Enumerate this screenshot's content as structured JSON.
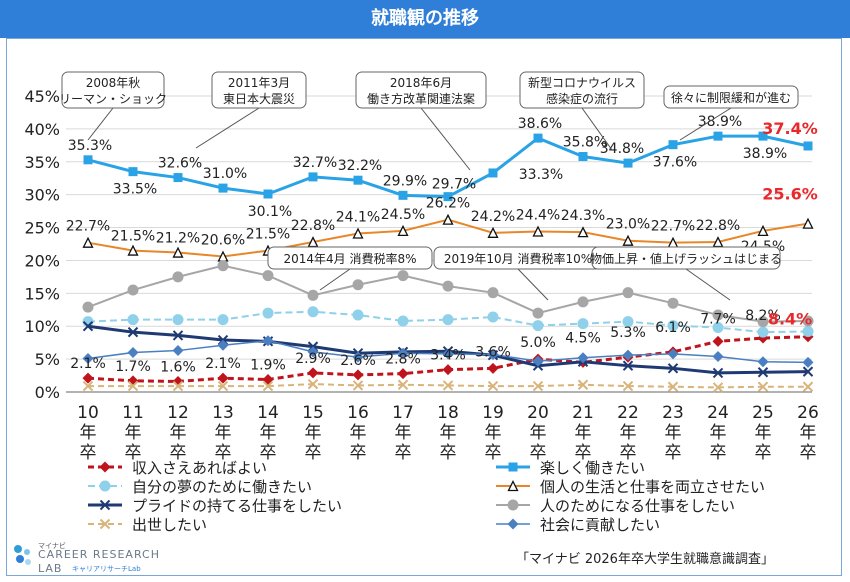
{
  "title": "就職観の推移",
  "source": "「マイナビ 2026年卒大学生就職意識調査」",
  "logo": {
    "small": "マイナビ",
    "main": "CAREER RESEARCH",
    "lab": "LAB",
    "sub": "キャリアリサーチLab"
  },
  "chart_data": {
    "type": "line",
    "categories": [
      "10\n年\n卒",
      "11\n年\n卒",
      "12\n年\n卒",
      "13\n年\n卒",
      "14\n年\n卒",
      "15\n年\n卒",
      "16\n年\n卒",
      "17\n年\n卒",
      "18\n年\n卒",
      "19\n年\n卒",
      "20\n年\n卒",
      "21\n年\n卒",
      "22\n年\n卒",
      "23\n年\n卒",
      "24\n年\n卒",
      "25\n年\n卒",
      "26\n年\n卒"
    ],
    "ylim": [
      0,
      45
    ],
    "yticks": [
      "0%",
      "5%",
      "10%",
      "15%",
      "20%",
      "25%",
      "30%",
      "35%",
      "40%",
      "45%"
    ],
    "grid": true,
    "series": [
      {
        "name": "収入さえあればよい",
        "color": "#c0141c",
        "dash": "6,4",
        "marker": "diamond",
        "width": 3,
        "values": [
          2.1,
          1.7,
          1.6,
          2.1,
          1.9,
          2.9,
          2.6,
          2.8,
          3.4,
          3.6,
          5.0,
          4.5,
          5.3,
          6.1,
          7.7,
          8.2,
          8.4
        ],
        "labels": [
          "2.1%",
          "1.7%",
          "1.6%",
          "2.1%",
          "1.9%",
          "2.9%",
          "2.6%",
          "2.8%",
          "3.4%",
          "3.6%",
          "5.0%",
          "4.5%",
          "5.3%",
          "6.1%",
          "7.7%",
          "8.2%",
          "8.4%"
        ]
      },
      {
        "name": "楽しく働きたい",
        "color": "#29a3e6",
        "dash": "",
        "marker": "square",
        "width": 3,
        "values": [
          35.3,
          33.5,
          32.6,
          31.0,
          30.1,
          32.7,
          32.2,
          29.9,
          29.7,
          33.3,
          38.6,
          35.8,
          34.8,
          37.6,
          38.9,
          38.9,
          37.4
        ],
        "labels": [
          "35.3%",
          "33.5%",
          "32.6%",
          "31.0%",
          "30.1%",
          "32.7%",
          "32.2%",
          "29.9%",
          "29.7%",
          "33.3%",
          "38.6%",
          "35.8%",
          "34.8%",
          "37.6%",
          "38.9%",
          "38.9%",
          "37.4%"
        ]
      },
      {
        "name": "自分の夢のために働きたい",
        "color": "#8fd0ea",
        "dash": "7,4",
        "marker": "circle",
        "width": 2,
        "values": [
          10.7,
          11.0,
          11.0,
          11.0,
          12.0,
          12.2,
          11.7,
          10.8,
          11.0,
          11.4,
          10.1,
          10.4,
          10.7,
          10.1,
          9.8,
          9.1,
          9.2
        ]
      },
      {
        "name": "個人の生活と仕事を両立させたい",
        "color": "#e8872a",
        "dash": "",
        "marker": "triangle",
        "width": 2,
        "values": [
          22.7,
          21.5,
          21.2,
          20.6,
          21.5,
          22.8,
          24.1,
          24.5,
          26.2,
          24.2,
          24.4,
          24.3,
          23.0,
          22.7,
          22.8,
          24.5,
          25.6
        ],
        "labels": [
          "22.7%",
          "21.5%",
          "21.2%",
          "20.6%",
          "21.5%",
          "22.8%",
          "24.1%",
          "24.5%",
          "26.2%",
          "24.2%",
          "24.4%",
          "24.3%",
          "23.0%",
          "22.7%",
          "22.8%",
          "24.5%",
          "25.6%"
        ]
      },
      {
        "name": "プライドの持てる仕事をしたい",
        "color": "#1f3a73",
        "dash": "",
        "marker": "x",
        "width": 3,
        "values": [
          10.0,
          9.1,
          8.6,
          7.9,
          7.7,
          6.9,
          5.9,
          6.1,
          6.2,
          5.6,
          4.0,
          4.6,
          4.0,
          3.6,
          2.9,
          3.0,
          3.1
        ]
      },
      {
        "name": "人のためになる仕事をしたい",
        "color": "#a6a6a6",
        "dash": "",
        "marker": "circle",
        "width": 2,
        "values": [
          12.9,
          15.5,
          17.5,
          19.2,
          17.7,
          14.7,
          16.3,
          17.7,
          16.1,
          15.1,
          12.0,
          13.7,
          15.1,
          13.5,
          11.7,
          10.7,
          10.8
        ]
      },
      {
        "name": "出世したい",
        "color": "#d9b47a",
        "dash": "6,4",
        "marker": "x",
        "width": 2,
        "values": [
          0.9,
          0.9,
          0.9,
          0.9,
          0.9,
          1.2,
          1.0,
          1.1,
          1.0,
          0.9,
          0.9,
          1.1,
          0.9,
          0.8,
          0.7,
          0.8,
          0.8
        ]
      },
      {
        "name": "社会に貢献したい",
        "color": "#4a7fc1",
        "dash": "",
        "marker": "diamond",
        "width": 1.5,
        "values": [
          5.1,
          6.0,
          6.3,
          7.1,
          7.8,
          6.1,
          5.3,
          5.9,
          5.8,
          5.7,
          4.7,
          5.2,
          5.6,
          5.8,
          5.4,
          4.6,
          4.5
        ]
      }
    ],
    "annotations": [
      {
        "text": "2008年秋\nリーマン・ショック",
        "index": 0
      },
      {
        "text": "2011年3月\n東日本大震災",
        "index": 2
      },
      {
        "text": "2018年6月\n働き方改革関連法案",
        "index": 8
      },
      {
        "text": "新型コロナウイルス\n感染症の流行",
        "index": 11
      },
      {
        "text": "徐々に制限緩和が進む",
        "index": 13
      },
      {
        "text": "2014年4月 消費税率8%",
        "index": 5
      },
      {
        "text": "2019年10月 消費税率10%",
        "index": 10
      },
      {
        "text": "物価上昇・値上げラッシュはじまる",
        "index": 14
      }
    ]
  }
}
